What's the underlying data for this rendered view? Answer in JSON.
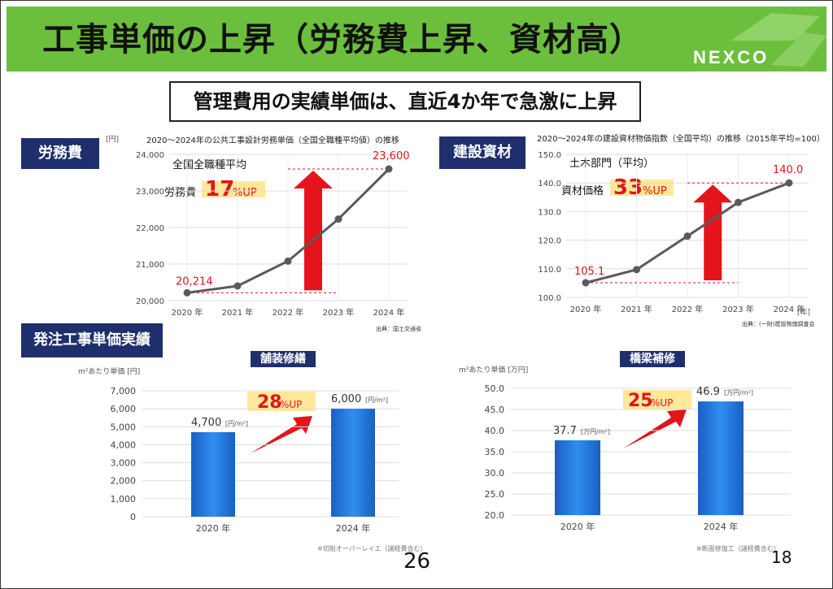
{
  "header": {
    "title": "工事単価の上昇（労務費上昇、資材高）",
    "logo": "NEXCO",
    "accent_color": "#6cbf3c"
  },
  "subtitle": "管理費用の実績単価は、直近4か年で急激に上昇",
  "labor_chart": {
    "badge": "労務費",
    "title": "2020～2024年の公共工事設計労務単価（全国全職種平均値）の推移",
    "unit": "[円]",
    "source": "出典：国土交通省",
    "callout_line1": "全国全職種平均",
    "callout_prefix": "労務費",
    "callout_number": "17",
    "callout_suffix": "%UP",
    "start_label": "20,214",
    "end_label": "23,600"
  },
  "material_chart": {
    "badge": "建設資材",
    "title": "2020～2024年の建設資材物価指数（全国平均）の推移（2015年平均=100）",
    "unit": "[年]",
    "source": "出典：(一財)建設物価調査会",
    "callout_line1": "土木部門（平均）",
    "callout_prefix": "資材価格",
    "callout_number": "33",
    "callout_suffix": "%UP",
    "start_label": "105.1",
    "end_label": "140.0"
  },
  "order_section": {
    "badge": "発注工事単価実績"
  },
  "paving_chart": {
    "label": "舗装修繕",
    "ylabel": "m²あたり単価 [円]",
    "callout_number": "28",
    "callout_suffix": "%UP",
    "bar1_label": "4,700",
    "bar1_unit": "[円/m²]",
    "bar2_label": "6,000",
    "bar2_unit": "[円/m²]",
    "footnote": "※切削オーバーレイエ（諸経費含む）"
  },
  "bridge_chart": {
    "label": "橋梁補修",
    "ylabel": "m²あたり単価 [万円]",
    "callout_number": "25",
    "callout_suffix": "%UP",
    "bar1_label": "37.7",
    "bar1_unit": "[万円/m²]",
    "bar2_label": "46.9",
    "bar2_unit": "[万円/m²]",
    "footnote": "※断面修復工（諸経費含む）"
  },
  "page": {
    "number_left": "26",
    "number_right": "18"
  },
  "colors": {
    "badge_navy": "#1f2f6d",
    "line_gray": "#5a5a5a",
    "callout_red": "#e3141b",
    "bar_blue": "#1f6fd6",
    "highlight_yellow": "#ffe89a"
  },
  "chart_data": [
    {
      "type": "line",
      "id": "labor",
      "title": "2020～2024年の公共工事設計労務単価（全国全職種平均値）の推移",
      "categories": [
        "2020 年",
        "2021 年",
        "2022 年",
        "2023 年",
        "2024 年"
      ],
      "values": [
        20214,
        20400,
        21080,
        22230,
        23600
      ],
      "yticks": [
        "20,000",
        "21,000",
        "22,000",
        "23,000",
        "24,000"
      ],
      "ylim": [
        20000,
        24000
      ],
      "grid": true
    },
    {
      "type": "line",
      "id": "material",
      "title": "2020～2024年の建設資材物価指数（全国平均）の推移（2015年平均=100）",
      "categories": [
        "2020 年",
        "2021 年",
        "2022 年",
        "2023 年",
        "2024 年"
      ],
      "values": [
        105.1,
        109.7,
        121.4,
        133.2,
        140.0
      ],
      "yticks": [
        "100.0",
        "110.0",
        "120.0",
        "130.0",
        "140.0",
        "150.0"
      ],
      "ylim": [
        100,
        150
      ],
      "grid": true
    },
    {
      "type": "bar",
      "id": "paving",
      "title": "舗装修繕",
      "categories": [
        "2020 年",
        "2024 年"
      ],
      "values": [
        4700,
        6000
      ],
      "yticks": [
        "0",
        "1,000",
        "2,000",
        "3,000",
        "4,000",
        "5,000",
        "6,000",
        "7,000"
      ],
      "ylabel": "m²あたり単価 [円]",
      "ylim": [
        0,
        7000
      ],
      "grid": true
    },
    {
      "type": "bar",
      "id": "bridge",
      "title": "橋梁補修",
      "categories": [
        "2020 年",
        "2024 年"
      ],
      "values": [
        37.7,
        46.9
      ],
      "yticks": [
        "20.0",
        "25.0",
        "30.0",
        "35.0",
        "40.0",
        "45.0",
        "50.0"
      ],
      "ylabel": "m²あたり単価 [万円]",
      "ylim": [
        20,
        50
      ],
      "grid": true
    }
  ]
}
